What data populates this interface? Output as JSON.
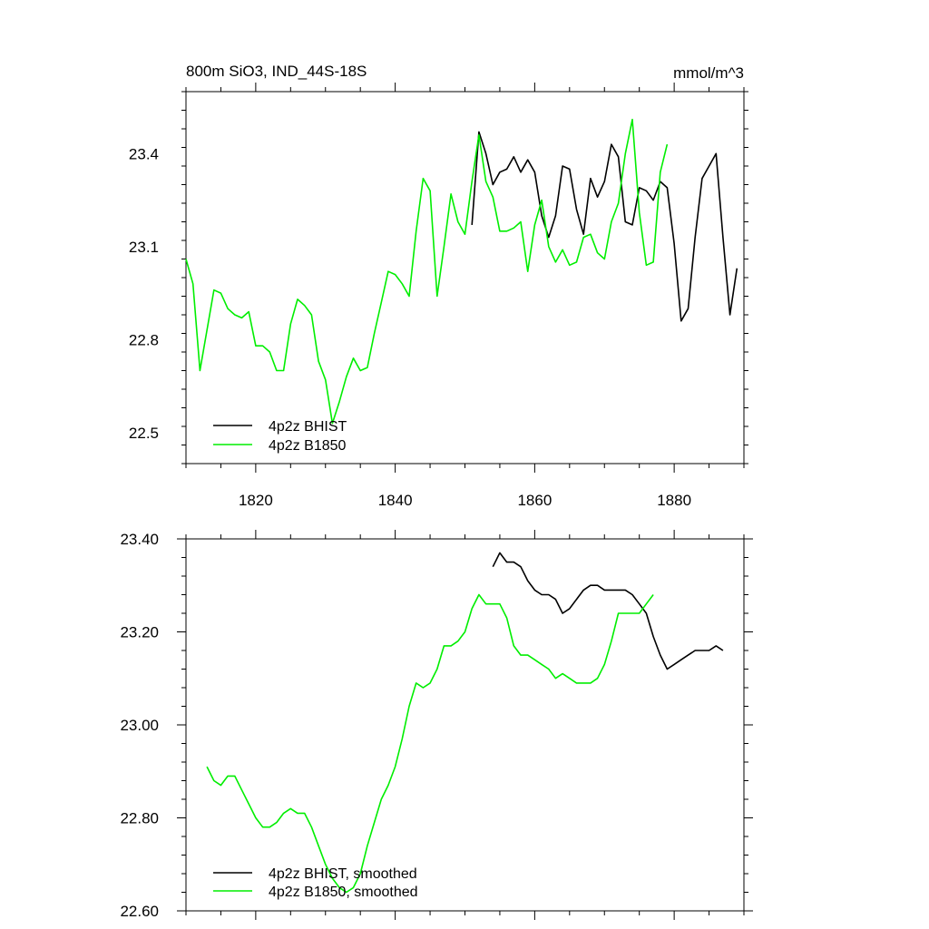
{
  "chart_data": [
    {
      "type": "line",
      "title": "800m SiO3, IND_44S-18S",
      "units_label": "mmol/m^3",
      "xlim": [
        1810,
        1890
      ],
      "ylim": [
        22.4,
        23.6
      ],
      "x_ticks": [
        1820,
        1840,
        1860,
        1880
      ],
      "x_tick_labels": [
        "1820",
        "1840",
        "1860",
        "1880"
      ],
      "y_ticks": [
        22.5,
        22.8,
        23.1,
        23.4
      ],
      "y_tick_labels": [
        "22.5",
        "22.8",
        "23.1",
        "23.4"
      ],
      "series": [
        {
          "name": "4p2z BHIST",
          "color": "#000000",
          "x": [
            1851,
            1852,
            1853,
            1854,
            1855,
            1856,
            1857,
            1858,
            1859,
            1860,
            1861,
            1862,
            1863,
            1864,
            1865,
            1866,
            1867,
            1868,
            1869,
            1870,
            1871,
            1872,
            1873,
            1874,
            1875,
            1876,
            1877,
            1878,
            1879,
            1880,
            1881,
            1882,
            1883,
            1884,
            1885,
            1886,
            1887,
            1888,
            1889
          ],
          "y": [
            23.17,
            23.47,
            23.4,
            23.3,
            23.34,
            23.35,
            23.39,
            23.34,
            23.38,
            23.34,
            23.2,
            23.13,
            23.2,
            23.36,
            23.35,
            23.22,
            23.14,
            23.32,
            23.26,
            23.31,
            23.43,
            23.39,
            23.18,
            23.17,
            23.29,
            23.28,
            23.25,
            23.31,
            23.29,
            23.11,
            22.86,
            22.9,
            23.13,
            23.32,
            23.36,
            23.4,
            23.13,
            22.88,
            23.03
          ]
        },
        {
          "name": "4p2z B1850",
          "color": "#00ee00",
          "x": [
            1810,
            1811,
            1812,
            1813,
            1814,
            1815,
            1816,
            1817,
            1818,
            1819,
            1820,
            1821,
            1822,
            1823,
            1824,
            1825,
            1826,
            1827,
            1828,
            1829,
            1830,
            1831,
            1832,
            1833,
            1834,
            1835,
            1836,
            1837,
            1838,
            1839,
            1840,
            1841,
            1842,
            1843,
            1844,
            1845,
            1846,
            1847,
            1848,
            1849,
            1850,
            1851,
            1852,
            1853,
            1854,
            1855,
            1856,
            1857,
            1858,
            1859,
            1860,
            1861,
            1862,
            1863,
            1864,
            1865,
            1866,
            1867,
            1868,
            1869,
            1870,
            1871,
            1872,
            1873,
            1874,
            1875,
            1876,
            1877,
            1878,
            1879
          ],
          "y": [
            23.06,
            22.98,
            22.7,
            22.83,
            22.96,
            22.95,
            22.9,
            22.88,
            22.87,
            22.89,
            22.78,
            22.78,
            22.76,
            22.7,
            22.7,
            22.85,
            22.93,
            22.91,
            22.88,
            22.73,
            22.67,
            22.53,
            22.6,
            22.68,
            22.74,
            22.7,
            22.71,
            22.82,
            22.92,
            23.02,
            23.01,
            22.98,
            22.94,
            23.15,
            23.32,
            23.28,
            22.94,
            23.1,
            23.27,
            23.18,
            23.14,
            23.31,
            23.46,
            23.31,
            23.26,
            23.15,
            23.15,
            23.16,
            23.18,
            23.02,
            23.17,
            23.25,
            23.1,
            23.05,
            23.09,
            23.04,
            23.05,
            23.13,
            23.14,
            23.08,
            23.06,
            23.18,
            23.24,
            23.4,
            23.51,
            23.21,
            23.04,
            23.05,
            23.34,
            23.43
          ]
        }
      ]
    },
    {
      "type": "line",
      "xlim": [
        1810,
        1890
      ],
      "ylim": [
        22.6,
        23.4
      ],
      "x_ticks": [
        1820,
        1840,
        1860,
        1880
      ],
      "y_ticks": [
        22.6,
        22.8,
        23.0,
        23.2,
        23.4
      ],
      "y_tick_labels": [
        "22.60",
        "22.80",
        "23.00",
        "23.20",
        "23.40"
      ],
      "series": [
        {
          "name": "4p2z BHIST, smoothed",
          "color": "#000000",
          "x": [
            1854,
            1855,
            1856,
            1857,
            1858,
            1859,
            1860,
            1861,
            1862,
            1863,
            1864,
            1865,
            1866,
            1867,
            1868,
            1869,
            1870,
            1871,
            1872,
            1873,
            1874,
            1875,
            1876,
            1877,
            1878,
            1879,
            1880,
            1881,
            1882,
            1883,
            1884,
            1885,
            1886,
            1887
          ],
          "y": [
            23.34,
            23.37,
            23.35,
            23.35,
            23.34,
            23.31,
            23.29,
            23.28,
            23.28,
            23.27,
            23.24,
            23.25,
            23.27,
            23.29,
            23.3,
            23.3,
            23.29,
            23.29,
            23.29,
            23.29,
            23.28,
            23.26,
            23.24,
            23.19,
            23.15,
            23.12,
            23.13,
            23.14,
            23.15,
            23.16,
            23.16,
            23.16,
            23.17,
            23.16
          ]
        },
        {
          "name": "4p2z B1850, smoothed",
          "color": "#00ee00",
          "x": [
            1813,
            1814,
            1815,
            1816,
            1817,
            1818,
            1819,
            1820,
            1821,
            1822,
            1823,
            1824,
            1825,
            1826,
            1827,
            1828,
            1829,
            1830,
            1831,
            1832,
            1833,
            1834,
            1835,
            1836,
            1837,
            1838,
            1839,
            1840,
            1841,
            1842,
            1843,
            1844,
            1845,
            1846,
            1847,
            1848,
            1849,
            1850,
            1851,
            1852,
            1853,
            1854,
            1855,
            1856,
            1857,
            1858,
            1859,
            1860,
            1861,
            1862,
            1863,
            1864,
            1865,
            1866,
            1867,
            1868,
            1869,
            1870,
            1871,
            1872,
            1873,
            1874,
            1875,
            1876,
            1877
          ],
          "y": [
            22.91,
            22.88,
            22.87,
            22.89,
            22.89,
            22.86,
            22.83,
            22.8,
            22.78,
            22.78,
            22.79,
            22.81,
            22.82,
            22.81,
            22.81,
            22.78,
            22.74,
            22.7,
            22.67,
            22.65,
            22.64,
            22.65,
            22.68,
            22.74,
            22.79,
            22.84,
            22.87,
            22.91,
            22.97,
            23.04,
            23.09,
            23.08,
            23.09,
            23.12,
            23.17,
            23.17,
            23.18,
            23.2,
            23.25,
            23.28,
            23.26,
            23.26,
            23.26,
            23.23,
            23.17,
            23.15,
            23.15,
            23.14,
            23.13,
            23.12,
            23.1,
            23.11,
            23.1,
            23.09,
            23.09,
            23.09,
            23.1,
            23.13,
            23.18,
            23.24,
            23.24,
            23.24,
            23.24,
            23.26,
            23.28
          ]
        }
      ]
    }
  ]
}
